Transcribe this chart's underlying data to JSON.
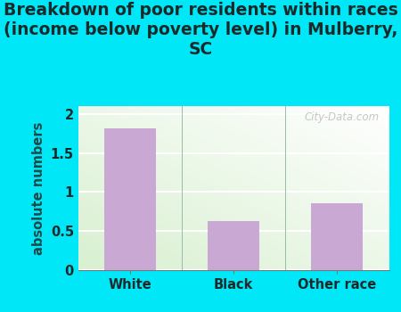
{
  "title": "Breakdown of poor residents within races\n(income below poverty level) in Mulberry,\nSC",
  "categories": [
    "White",
    "Black",
    "Other race"
  ],
  "values": [
    1.82,
    0.63,
    0.85
  ],
  "bar_color": "#c9a8d4",
  "ylabel": "absolute numbers",
  "ylim": [
    0,
    2.1
  ],
  "yticks": [
    0,
    0.5,
    1,
    1.5,
    2
  ],
  "outer_bg": "#00e8f8",
  "title_color": "#1a2a2a",
  "watermark": "City-Data.com",
  "plot_bg_color": "#eaf5e8",
  "title_fontsize": 13.5,
  "tick_fontsize": 10.5,
  "ylabel_fontsize": 10.5
}
